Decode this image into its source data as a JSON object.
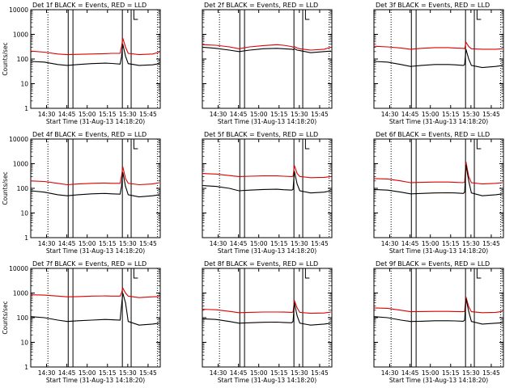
{
  "chart_data": {
    "type": "line",
    "layout": "3x3 grid",
    "yscale": "log",
    "ylim": [
      1,
      10000
    ],
    "xlim": [
      "14:18:20",
      "15:54:00"
    ],
    "y_ticks": [
      "1",
      "10",
      "100",
      "1000",
      "10000"
    ],
    "x_ticks": [
      "14:30",
      "14:45",
      "15:00",
      "15:15",
      "15:30",
      "15:45"
    ],
    "ylabel": "Counts/sec",
    "xlabel": "Start Time (31-Aug-13 14:18:20)",
    "series_colors": {
      "events": "#000000",
      "lld": "#dd0000"
    },
    "solid_markers": [
      "14:46:00",
      "14:49:30",
      "15:26:00",
      "15:32:30"
    ],
    "dotted_markers": [
      "14:31:00",
      "15:52:00"
    ],
    "bracket_marker": "15:34:30",
    "panels": [
      {
        "title": "Det 1f BLACK = Events, RED = LLD",
        "y_labels": true,
        "x_labels": true,
        "axis_title": false,
        "events": [
          [
            0,
            80
          ],
          [
            10,
            75
          ],
          [
            20,
            60
          ],
          [
            27,
            55
          ],
          [
            35,
            60
          ],
          [
            45,
            65
          ],
          [
            55,
            68
          ],
          [
            60,
            66
          ],
          [
            66,
            62
          ],
          [
            67,
            120
          ],
          [
            68,
            400
          ],
          [
            70,
            130
          ],
          [
            72,
            65
          ],
          [
            80,
            55
          ],
          [
            90,
            58
          ],
          [
            95,
            65
          ]
        ],
        "lld": [
          [
            0,
            210
          ],
          [
            10,
            190
          ],
          [
            20,
            160
          ],
          [
            27,
            150
          ],
          [
            35,
            155
          ],
          [
            45,
            160
          ],
          [
            55,
            165
          ],
          [
            60,
            170
          ],
          [
            66,
            170
          ],
          [
            67,
            300
          ],
          [
            68,
            700
          ],
          [
            70,
            300
          ],
          [
            72,
            170
          ],
          [
            80,
            150
          ],
          [
            90,
            160
          ],
          [
            95,
            190
          ]
        ]
      },
      {
        "title": "Det 2f BLACK = Events, RED = LLD",
        "y_labels": false,
        "x_labels": true,
        "axis_title": false,
        "events": [
          [
            0,
            300
          ],
          [
            10,
            270
          ],
          [
            20,
            230
          ],
          [
            27,
            200
          ],
          [
            35,
            230
          ],
          [
            45,
            260
          ],
          [
            55,
            270
          ],
          [
            60,
            260
          ],
          [
            66,
            250
          ],
          [
            67,
            240
          ],
          [
            68,
            260
          ],
          [
            70,
            230
          ],
          [
            72,
            220
          ],
          [
            80,
            180
          ],
          [
            90,
            200
          ],
          [
            95,
            210
          ]
        ],
        "lld": [
          [
            0,
            380
          ],
          [
            10,
            360
          ],
          [
            20,
            310
          ],
          [
            27,
            260
          ],
          [
            35,
            310
          ],
          [
            45,
            350
          ],
          [
            55,
            380
          ],
          [
            60,
            360
          ],
          [
            66,
            320
          ],
          [
            67,
            300
          ],
          [
            68,
            320
          ],
          [
            70,
            280
          ],
          [
            72,
            260
          ],
          [
            80,
            230
          ],
          [
            90,
            250
          ],
          [
            95,
            300
          ]
        ]
      },
      {
        "title": "Det 3f BLACK = Events, RED = LLD",
        "y_labels": false,
        "x_labels": true,
        "axis_title": false,
        "events": [
          [
            0,
            80
          ],
          [
            10,
            75
          ],
          [
            20,
            60
          ],
          [
            27,
            50
          ],
          [
            35,
            55
          ],
          [
            45,
            60
          ],
          [
            55,
            60
          ],
          [
            60,
            58
          ],
          [
            66,
            55
          ],
          [
            67,
            60
          ],
          [
            68,
            250
          ],
          [
            70,
            100
          ],
          [
            72,
            55
          ],
          [
            80,
            45
          ],
          [
            90,
            50
          ],
          [
            95,
            55
          ]
        ],
        "lld": [
          [
            0,
            330
          ],
          [
            10,
            310
          ],
          [
            20,
            280
          ],
          [
            27,
            250
          ],
          [
            35,
            270
          ],
          [
            45,
            290
          ],
          [
            55,
            290
          ],
          [
            60,
            280
          ],
          [
            66,
            270
          ],
          [
            67,
            260
          ],
          [
            68,
            480
          ],
          [
            70,
            320
          ],
          [
            72,
            260
          ],
          [
            80,
            250
          ],
          [
            90,
            250
          ],
          [
            95,
            260
          ]
        ]
      },
      {
        "title": "Det 4f BLACK = Events, RED = LLD",
        "y_labels": true,
        "x_labels": true,
        "axis_title": false,
        "events": [
          [
            0,
            80
          ],
          [
            10,
            70
          ],
          [
            20,
            55
          ],
          [
            27,
            50
          ],
          [
            35,
            55
          ],
          [
            45,
            60
          ],
          [
            55,
            62
          ],
          [
            60,
            60
          ],
          [
            66,
            58
          ],
          [
            67,
            120
          ],
          [
            68,
            450
          ],
          [
            70,
            120
          ],
          [
            72,
            55
          ],
          [
            80,
            45
          ],
          [
            90,
            50
          ],
          [
            95,
            55
          ]
        ],
        "lld": [
          [
            0,
            200
          ],
          [
            10,
            190
          ],
          [
            20,
            160
          ],
          [
            27,
            140
          ],
          [
            35,
            150
          ],
          [
            45,
            160
          ],
          [
            55,
            165
          ],
          [
            60,
            160
          ],
          [
            66,
            160
          ],
          [
            67,
            300
          ],
          [
            68,
            750
          ],
          [
            70,
            250
          ],
          [
            72,
            160
          ],
          [
            80,
            140
          ],
          [
            90,
            150
          ],
          [
            95,
            170
          ]
        ]
      },
      {
        "title": "Det 5f BLACK = Events, RED = LLD",
        "y_labels": false,
        "x_labels": true,
        "axis_title": false,
        "events": [
          [
            0,
            130
          ],
          [
            10,
            120
          ],
          [
            20,
            100
          ],
          [
            27,
            80
          ],
          [
            35,
            85
          ],
          [
            45,
            90
          ],
          [
            55,
            92
          ],
          [
            60,
            88
          ],
          [
            66,
            85
          ],
          [
            67,
            90
          ],
          [
            68,
            500
          ],
          [
            70,
            150
          ],
          [
            72,
            80
          ],
          [
            80,
            65
          ],
          [
            90,
            70
          ],
          [
            95,
            80
          ]
        ],
        "lld": [
          [
            0,
            400
          ],
          [
            10,
            380
          ],
          [
            20,
            330
          ],
          [
            27,
            300
          ],
          [
            35,
            310
          ],
          [
            45,
            320
          ],
          [
            55,
            320
          ],
          [
            60,
            310
          ],
          [
            66,
            300
          ],
          [
            67,
            310
          ],
          [
            68,
            850
          ],
          [
            70,
            400
          ],
          [
            72,
            300
          ],
          [
            80,
            270
          ],
          [
            90,
            280
          ],
          [
            95,
            300
          ]
        ]
      },
      {
        "title": "Det 6f BLACK = Events, RED = LLD",
        "y_labels": false,
        "x_labels": true,
        "axis_title": false,
        "events": [
          [
            0,
            90
          ],
          [
            10,
            85
          ],
          [
            20,
            70
          ],
          [
            27,
            60
          ],
          [
            35,
            62
          ],
          [
            45,
            65
          ],
          [
            55,
            66
          ],
          [
            60,
            65
          ],
          [
            66,
            62
          ],
          [
            67,
            70
          ],
          [
            68,
            900
          ],
          [
            70,
            200
          ],
          [
            72,
            65
          ],
          [
            80,
            50
          ],
          [
            90,
            55
          ],
          [
            95,
            60
          ]
        ],
        "lld": [
          [
            0,
            250
          ],
          [
            10,
            240
          ],
          [
            20,
            200
          ],
          [
            27,
            170
          ],
          [
            35,
            175
          ],
          [
            45,
            180
          ],
          [
            55,
            180
          ],
          [
            60,
            175
          ],
          [
            66,
            170
          ],
          [
            67,
            180
          ],
          [
            68,
            1200
          ],
          [
            70,
            300
          ],
          [
            72,
            170
          ],
          [
            80,
            150
          ],
          [
            90,
            160
          ],
          [
            95,
            170
          ]
        ]
      },
      {
        "title": "Det 7f BLACK = Events, RED = LLD",
        "y_labels": true,
        "x_labels": true,
        "axis_title": true,
        "events": [
          [
            0,
            110
          ],
          [
            10,
            100
          ],
          [
            20,
            80
          ],
          [
            27,
            70
          ],
          [
            35,
            75
          ],
          [
            45,
            80
          ],
          [
            55,
            85
          ],
          [
            60,
            82
          ],
          [
            66,
            80
          ],
          [
            67,
            300
          ],
          [
            68,
            1000
          ],
          [
            70,
            400
          ],
          [
            72,
            70
          ],
          [
            80,
            50
          ],
          [
            90,
            55
          ],
          [
            95,
            60
          ]
        ],
        "lld": [
          [
            0,
            850
          ],
          [
            10,
            820
          ],
          [
            20,
            750
          ],
          [
            27,
            700
          ],
          [
            35,
            720
          ],
          [
            45,
            750
          ],
          [
            55,
            760
          ],
          [
            60,
            750
          ],
          [
            66,
            750
          ],
          [
            67,
            1000
          ],
          [
            68,
            1600
          ],
          [
            70,
            1000
          ],
          [
            72,
            750
          ],
          [
            80,
            650
          ],
          [
            90,
            700
          ],
          [
            95,
            720
          ]
        ]
      },
      {
        "title": "Det 8f BLACK = Events, RED = LLD",
        "y_labels": false,
        "x_labels": true,
        "axis_title": true,
        "events": [
          [
            0,
            90
          ],
          [
            10,
            85
          ],
          [
            20,
            70
          ],
          [
            27,
            60
          ],
          [
            35,
            62
          ],
          [
            45,
            65
          ],
          [
            55,
            66
          ],
          [
            60,
            64
          ],
          [
            66,
            62
          ],
          [
            67,
            70
          ],
          [
            68,
            400
          ],
          [
            70,
            120
          ],
          [
            72,
            60
          ],
          [
            80,
            50
          ],
          [
            90,
            55
          ],
          [
            95,
            60
          ]
        ],
        "lld": [
          [
            0,
            220
          ],
          [
            10,
            210
          ],
          [
            20,
            180
          ],
          [
            27,
            160
          ],
          [
            35,
            165
          ],
          [
            45,
            170
          ],
          [
            55,
            170
          ],
          [
            60,
            168
          ],
          [
            66,
            165
          ],
          [
            67,
            170
          ],
          [
            68,
            500
          ],
          [
            70,
            250
          ],
          [
            72,
            165
          ],
          [
            80,
            150
          ],
          [
            90,
            155
          ],
          [
            95,
            170
          ]
        ]
      },
      {
        "title": "Det 9f BLACK = Events, RED = LLD",
        "y_labels": false,
        "x_labels": true,
        "axis_title": true,
        "events": [
          [
            0,
            110
          ],
          [
            10,
            100
          ],
          [
            20,
            80
          ],
          [
            27,
            70
          ],
          [
            35,
            72
          ],
          [
            45,
            75
          ],
          [
            55,
            75
          ],
          [
            60,
            74
          ],
          [
            66,
            72
          ],
          [
            67,
            80
          ],
          [
            68,
            600
          ],
          [
            70,
            180
          ],
          [
            72,
            70
          ],
          [
            80,
            55
          ],
          [
            90,
            60
          ],
          [
            95,
            62
          ]
        ],
        "lld": [
          [
            0,
            250
          ],
          [
            10,
            240
          ],
          [
            20,
            200
          ],
          [
            27,
            175
          ],
          [
            35,
            178
          ],
          [
            45,
            180
          ],
          [
            55,
            180
          ],
          [
            60,
            178
          ],
          [
            66,
            175
          ],
          [
            67,
            180
          ],
          [
            68,
            700
          ],
          [
            70,
            280
          ],
          [
            72,
            175
          ],
          [
            80,
            160
          ],
          [
            90,
            165
          ],
          [
            95,
            180
          ]
        ]
      }
    ]
  }
}
